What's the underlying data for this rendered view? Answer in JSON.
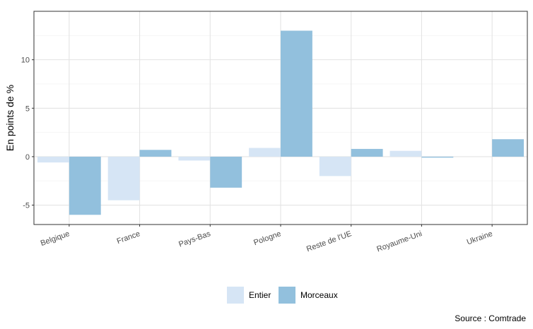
{
  "chart_data": {
    "type": "bar",
    "categories": [
      "Belgique",
      "France",
      "Pays-Bas",
      "Pologne",
      "Reste de l'UE",
      "Royaume-Uni",
      "Ukraine"
    ],
    "series": [
      {
        "name": "Entier",
        "values": [
          -0.6,
          -4.5,
          -0.4,
          0.9,
          -2.0,
          0.6,
          0.0
        ],
        "color": "#d6e5f5"
      },
      {
        "name": "Morceaux",
        "values": [
          -6.0,
          0.7,
          -3.2,
          13.0,
          0.8,
          -0.1,
          1.8
        ],
        "color": "#92c0dd"
      }
    ],
    "ylabel": "En points de %",
    "xlabel": "",
    "ylim": [
      -7,
      15
    ],
    "yticks": [
      -5,
      0,
      5,
      10
    ],
    "ytick_labels": [
      "-5",
      "0",
      "5",
      "10"
    ],
    "grid": true,
    "legend_position": "bottom"
  },
  "source": "Source : Comtrade"
}
